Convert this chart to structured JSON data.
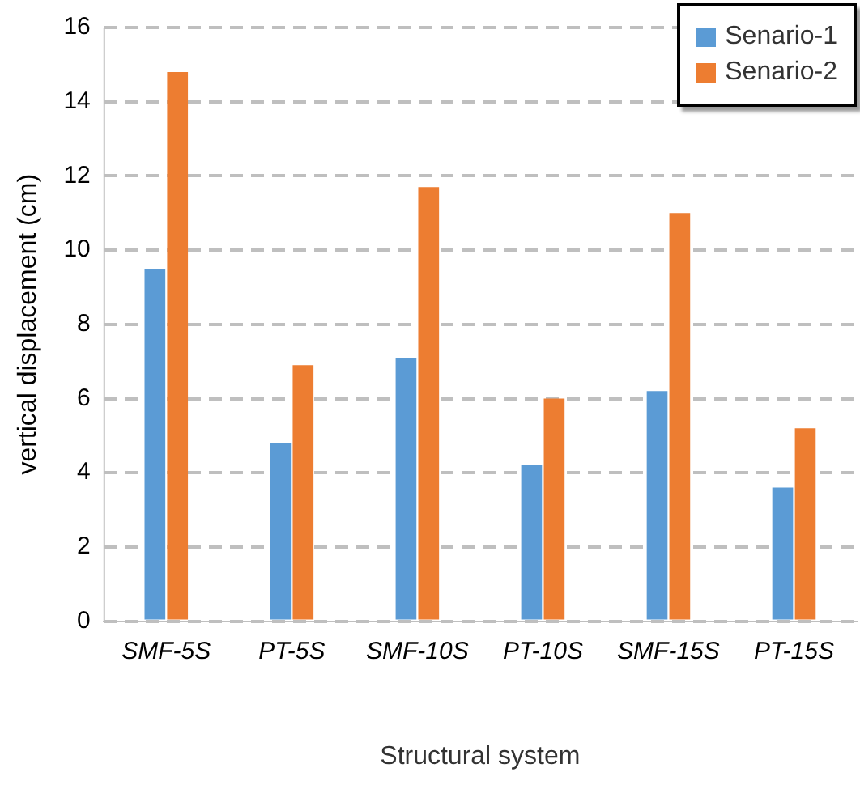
{
  "chart_data": {
    "type": "bar",
    "xlabel": "Structural system",
    "ylabel": "vertical displacement (cm)",
    "categories": [
      "SMF-5S",
      "PT-5S",
      "SMF-10S",
      "PT-10S",
      "SMF-15S",
      "PT-15S"
    ],
    "series": [
      {
        "name": "Senario-1",
        "color": "#5b9bd5",
        "values": [
          9.5,
          4.8,
          7.1,
          4.2,
          6.2,
          3.6
        ]
      },
      {
        "name": "Senario-2",
        "color": "#ed7d31",
        "values": [
          14.8,
          6.9,
          11.7,
          6.0,
          11.0,
          5.2
        ]
      }
    ],
    "ylim": [
      0,
      16
    ],
    "yticks": [
      0,
      2,
      4,
      6,
      8,
      10,
      12,
      14,
      16
    ],
    "grid": "y",
    "legend": "top right"
  }
}
